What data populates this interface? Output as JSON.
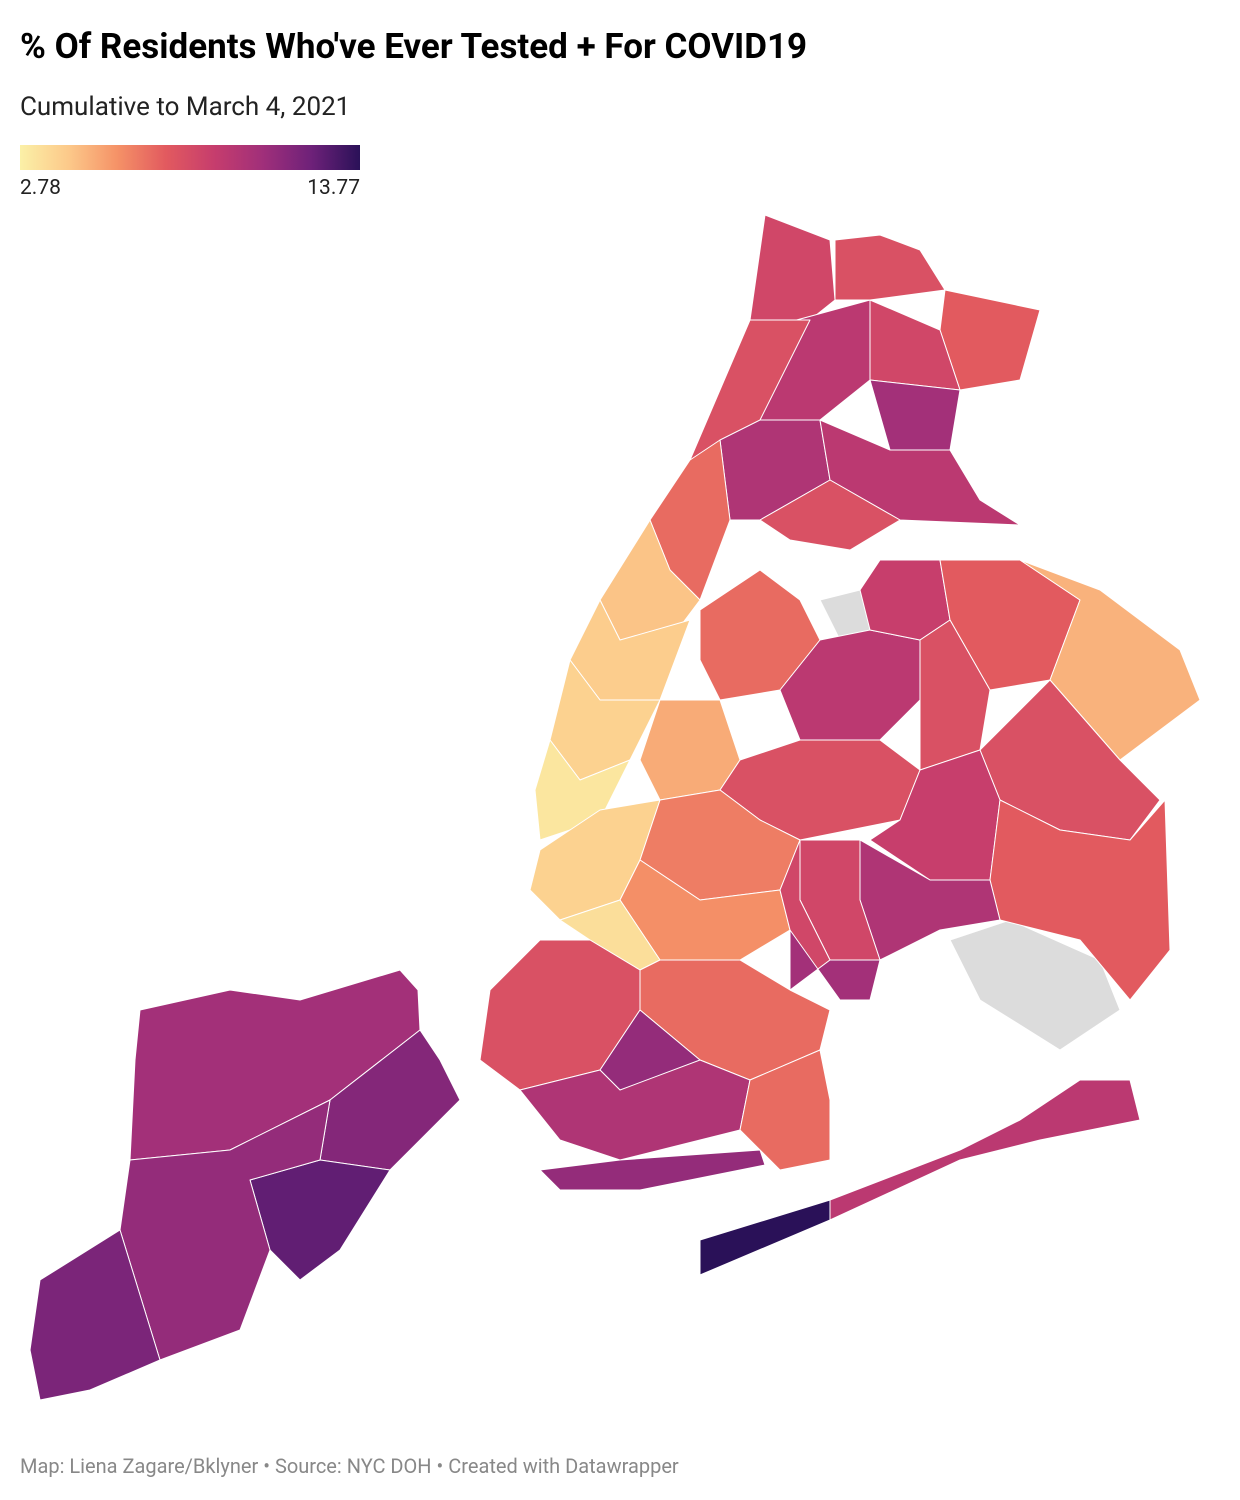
{
  "chart_data": {
    "type": "choropleth",
    "title": "% Of Residents Who've Ever Tested + For COVID19",
    "subtitle": "Cumulative to March 4, 2021",
    "colorscale": {
      "min": 2.78,
      "max": 13.77,
      "colors": [
        "#fbf0a7",
        "#fcc98a",
        "#f59267",
        "#e25a5f",
        "#c63d6d",
        "#a02f7a",
        "#6e2179",
        "#2a1158"
      ]
    },
    "values": [
      8.5,
      8.0,
      7.5,
      8.5,
      10.5,
      9.5,
      10,
      9.5,
      8,
      8,
      7,
      4.5,
      4.2,
      4,
      3.2,
      7,
      5.2,
      9.5,
      9,
      7.5,
      5,
      8,
      8,
      8,
      9,
      7.5,
      10,
      8.5,
      4,
      6.5,
      6,
      3.5,
      8.5,
      10.5,
      8,
      7,
      11,
      10,
      7,
      11,
      10.5,
      11.5,
      12.5,
      11,
      11.8,
      13.77,
      9.5
    ],
    "footer": "Map: Liena Zagare/Bklyner • Source: NYC DOH • Created with Datawrapper"
  }
}
